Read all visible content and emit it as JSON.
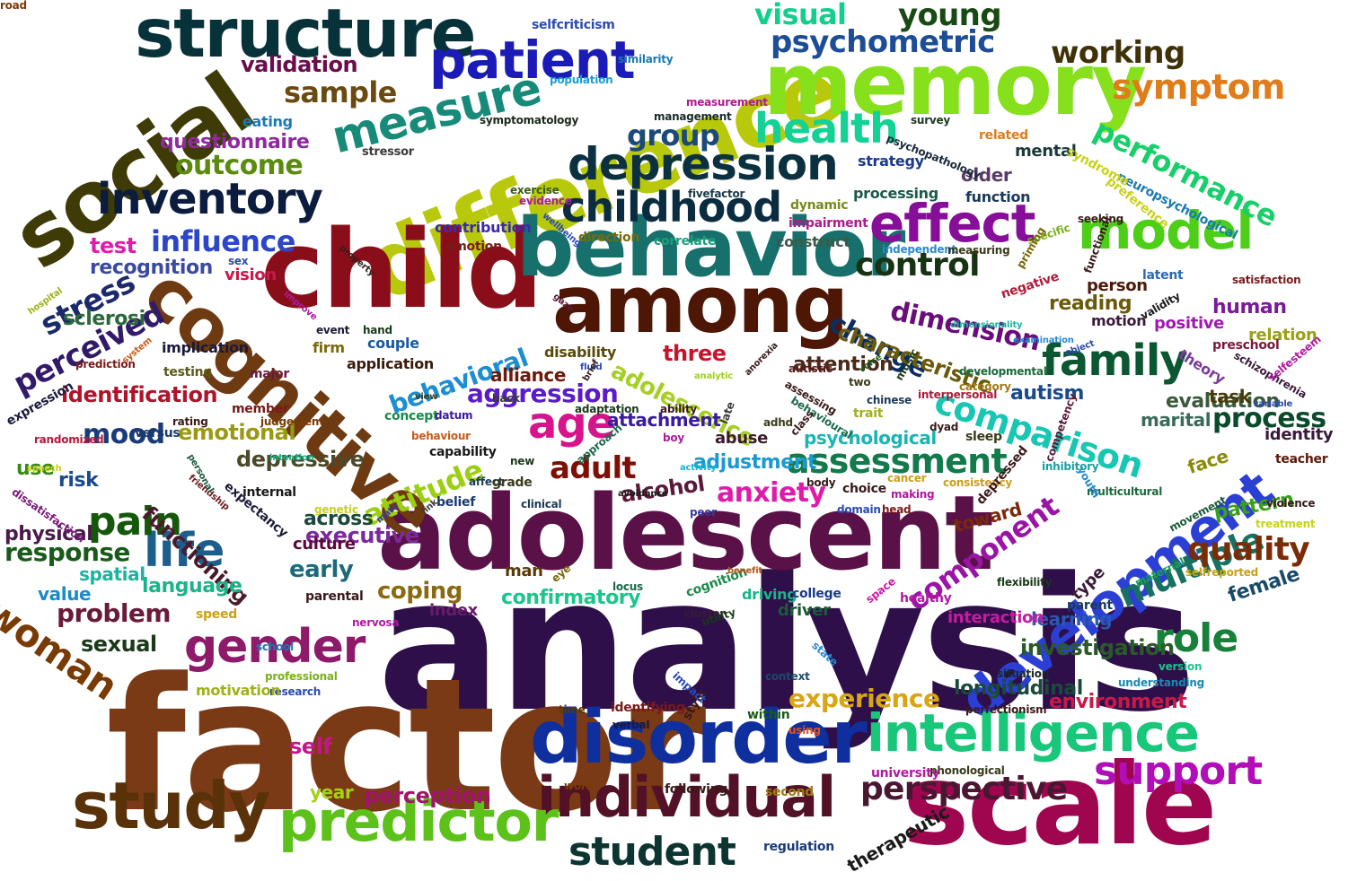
{
  "words": [
    {
      "text": "analysis",
      "color": "#2e0f4a"
    },
    {
      "text": "factor",
      "color": "#7a3a16"
    },
    {
      "text": "adolescent",
      "color": "#5a1147"
    },
    {
      "text": "scale",
      "color": "#a0064f"
    },
    {
      "text": "difference",
      "color": "#b8c90b"
    },
    {
      "text": "child",
      "color": "#8a0e1a"
    },
    {
      "text": "behavior",
      "color": "#17706b"
    },
    {
      "text": "memory",
      "color": "#86e01c"
    },
    {
      "text": "among",
      "color": "#4e1604"
    },
    {
      "text": "social",
      "color": "#3e3b06"
    },
    {
      "text": "cognitive",
      "color": "#6e3a12"
    },
    {
      "text": "disorder",
      "color": "#0f2f9e"
    },
    {
      "text": "structure",
      "color": "#07323a"
    },
    {
      "text": "study",
      "color": "#5a320a"
    },
    {
      "text": "individual",
      "color": "#521126"
    },
    {
      "text": "development",
      "color": "#2b3fd4"
    },
    {
      "text": "intelligence",
      "color": "#19c77a"
    },
    {
      "text": "predictor",
      "color": "#5cc21a"
    },
    {
      "text": "patient",
      "color": "#1b1bb7"
    },
    {
      "text": "model",
      "color": "#4ccf16"
    },
    {
      "text": "depression",
      "color": "#0b3140"
    },
    {
      "text": "inventory",
      "color": "#0b1c3f"
    },
    {
      "text": "family",
      "color": "#0b5731"
    },
    {
      "text": "measure",
      "color": "#178a79"
    },
    {
      "text": "effect",
      "color": "#860e98"
    },
    {
      "text": "childhood",
      "color": "#0a2b40"
    },
    {
      "text": "psychometric",
      "color": "#1d4d96"
    },
    {
      "text": "life",
      "color": "#1c5e8c"
    },
    {
      "text": "woman",
      "color": "#7a3a04"
    },
    {
      "text": "gender",
      "color": "#8e1a6a"
    },
    {
      "text": "age",
      "color": "#d7148c"
    },
    {
      "text": "comparison",
      "color": "#17c7b4"
    },
    {
      "text": "student",
      "color": "#0c3431"
    },
    {
      "text": "support",
      "color": "#b10eb7"
    },
    {
      "text": "health",
      "color": "#14d196"
    },
    {
      "text": "symptom",
      "color": "#e07c19"
    },
    {
      "text": "performance",
      "color": "#18cf6b"
    },
    {
      "text": "perspective",
      "color": "#4a1732"
    },
    {
      "text": "assessment",
      "color": "#127a4b"
    },
    {
      "text": "control",
      "color": "#173314"
    },
    {
      "text": "role",
      "color": "#17813a"
    },
    {
      "text": "multiple",
      "color": "#177061"
    },
    {
      "text": "pain",
      "color": "#15580c"
    },
    {
      "text": "attitude",
      "color": "#9ccf14"
    },
    {
      "text": "young",
      "color": "#194a14"
    },
    {
      "text": "working",
      "color": "#403108"
    },
    {
      "text": "visual",
      "color": "#14ce8b"
    },
    {
      "text": "quality",
      "color": "#7a2c06"
    },
    {
      "text": "anxiety",
      "color": "#de1caa"
    },
    {
      "text": "change",
      "color": "#0b2d61"
    },
    {
      "text": "outcome",
      "color": "#5a8b0e"
    },
    {
      "text": "adult",
      "color": "#7c1004"
    },
    {
      "text": "influence",
      "color": "#2b46c8"
    },
    {
      "text": "experience",
      "color": "#d7a612"
    },
    {
      "text": "perceived",
      "color": "#321a6a"
    },
    {
      "text": "group",
      "color": "#1b4a7a"
    },
    {
      "text": "behavioral",
      "color": "#1c8ed1"
    },
    {
      "text": "adolescence",
      "color": "#a6cf24"
    },
    {
      "text": "aggression",
      "color": "#5a1bc8"
    },
    {
      "text": "functioning",
      "color": "#4a1a2a"
    },
    {
      "text": "problem",
      "color": "#6a1a3a"
    },
    {
      "text": "component",
      "color": "#9a14a6"
    },
    {
      "text": "process",
      "color": "#0b4a2a"
    },
    {
      "text": "dimension",
      "color": "#6a0d7a"
    },
    {
      "text": "longitudinal",
      "color": "#1a4a3a"
    },
    {
      "text": "characteristic",
      "color": "#6a5a0b"
    },
    {
      "text": "sample",
      "color": "#6a4a10"
    },
    {
      "text": "validation",
      "color": "#6a0d4a"
    },
    {
      "text": "questionnaire",
      "color": "#8e2a9e"
    },
    {
      "text": "stress",
      "color": "#1a2a6a"
    },
    {
      "text": "identification",
      "color": "#b0142a"
    },
    {
      "text": "mood",
      "color": "#1a3a7a"
    },
    {
      "text": "emotional",
      "color": "#9a9a10"
    },
    {
      "text": "depressive",
      "color": "#4a4a2a"
    },
    {
      "text": "response",
      "color": "#1a5a1a"
    },
    {
      "text": "sexual",
      "color": "#1a3a1a"
    },
    {
      "text": "early",
      "color": "#1a6a7a"
    },
    {
      "text": "executive",
      "color": "#7a2a9a"
    },
    {
      "text": "coping",
      "color": "#8a6a10"
    },
    {
      "text": "confirmatory",
      "color": "#1ac68a"
    },
    {
      "text": "language",
      "color": "#1ab48a"
    },
    {
      "text": "spatial",
      "color": "#1ab4a0"
    },
    {
      "text": "value",
      "color": "#1a8ac8"
    },
    {
      "text": "self",
      "color": "#c8148a"
    },
    {
      "text": "perception",
      "color": "#a0146a"
    },
    {
      "text": "year",
      "color": "#a6d214"
    },
    {
      "text": "test",
      "color": "#e01cb0"
    },
    {
      "text": "recognition",
      "color": "#3a4aa0"
    },
    {
      "text": "sclerosi",
      "color": "#2a6a3a"
    },
    {
      "text": "risk",
      "color": "#1a4a8a"
    },
    {
      "text": "physical",
      "color": "#4a1a4a"
    },
    {
      "text": "use",
      "color": "#3a8a1a"
    },
    {
      "text": "three",
      "color": "#c8142a"
    },
    {
      "text": "alliance",
      "color": "#6a1a0a"
    },
    {
      "text": "attention",
      "color": "#4a2a1a"
    },
    {
      "text": "autism",
      "color": "#1a4a8a"
    },
    {
      "text": "evaluation",
      "color": "#3a5a3a"
    },
    {
      "text": "marital",
      "color": "#3a6a5a"
    },
    {
      "text": "identity",
      "color": "#3a1a3a"
    },
    {
      "text": "task",
      "color": "#4a3a0a"
    },
    {
      "text": "face",
      "color": "#8a8a0a"
    },
    {
      "text": "pattern",
      "color": "#3aa01a"
    },
    {
      "text": "reading",
      "color": "#6a5a0a"
    },
    {
      "text": "human",
      "color": "#7a1a9a"
    },
    {
      "text": "relation",
      "color": "#9aa01a"
    },
    {
      "text": "theory",
      "color": "#7a3a9a"
    },
    {
      "text": "positive",
      "color": "#a01ab0"
    },
    {
      "text": "person",
      "color": "#4a1a0a"
    },
    {
      "text": "motion",
      "color": "#3a1a3a"
    },
    {
      "text": "older",
      "color": "#5a3a6a"
    },
    {
      "text": "mental",
      "color": "#1a3a3a"
    },
    {
      "text": "processing",
      "color": "#1a5a4a"
    },
    {
      "text": "function",
      "color": "#1a3a5a"
    },
    {
      "text": "investigation",
      "color": "#2a5a2a"
    },
    {
      "text": "learning",
      "color": "#2a5ab0"
    },
    {
      "text": "interaction",
      "color": "#c81aa0"
    },
    {
      "text": "female",
      "color": "#1a4a6a"
    },
    {
      "text": "toward",
      "color": "#7a2a0a"
    },
    {
      "text": "environment",
      "color": "#c81a4a"
    },
    {
      "text": "psychological",
      "color": "#1ab4b4"
    },
    {
      "text": "attachment",
      "color": "#3a1aa0"
    },
    {
      "text": "abuse",
      "color": "#3a1a2a"
    },
    {
      "text": "alcohol",
      "color": "#5a1a3a"
    },
    {
      "text": "adjustment",
      "color": "#1a9ad2"
    },
    {
      "text": "across",
      "color": "#1a4a3a"
    },
    {
      "text": "culture",
      "color": "#5a0a3a"
    },
    {
      "text": "disability",
      "color": "#5a4a0a"
    },
    {
      "text": "application",
      "color": "#3a1a0a"
    },
    {
      "text": "couple",
      "color": "#1a5aa0"
    },
    {
      "text": "construct",
      "color": "#3a5a4a"
    },
    {
      "text": "correlate",
      "color": "#1aa07a"
    },
    {
      "text": "contribution",
      "color": "#3a2ab0"
    },
    {
      "text": "emotion",
      "color": "#7a1a1a"
    },
    {
      "text": "eating",
      "color": "#1a7ab0"
    },
    {
      "text": "strategy",
      "color": "#1a3a8a"
    },
    {
      "text": "impairment",
      "color": "#b01a8a"
    },
    {
      "text": "dynamic",
      "color": "#7a8a1a"
    },
    {
      "text": "evidence",
      "color": "#b01aa0"
    },
    {
      "text": "exercise",
      "color": "#3a5a1a"
    },
    {
      "text": "fivefactor",
      "color": "#1a3a4a"
    },
    {
      "text": "management",
      "color": "#1a2a2a"
    },
    {
      "text": "measurement",
      "color": "#b01a8a"
    },
    {
      "text": "population",
      "color": "#1aa0d2"
    },
    {
      "text": "similarity",
      "color": "#1a7ab0"
    },
    {
      "text": "selfcriticism",
      "color": "#2a4ab0"
    },
    {
      "text": "symptomatology",
      "color": "#1a2a1a"
    },
    {
      "text": "stressor",
      "color": "#3a3a3a"
    },
    {
      "text": "related",
      "color": "#e07c19"
    },
    {
      "text": "survey",
      "color": "#1a3a1a"
    },
    {
      "text": "psychopathology",
      "color": "#1a2a3a"
    },
    {
      "text": "neuropsychological",
      "color": "#1a7ab0"
    },
    {
      "text": "syndrome",
      "color": "#c8d21a"
    },
    {
      "text": "preference",
      "color": "#c8d21a"
    },
    {
      "text": "seeking",
      "color": "#3a1a1a"
    },
    {
      "text": "specific",
      "color": "#7ab01a"
    },
    {
      "text": "priming",
      "color": "#7a6a0a"
    },
    {
      "text": "independent",
      "color": "#2a8ad2"
    },
    {
      "text": "measuring",
      "color": "#3a3a1a"
    },
    {
      "text": "negative",
      "color": "#b01a3a"
    },
    {
      "text": "functional",
      "color": "#3a1a1a"
    },
    {
      "text": "latent",
      "color": "#2a6ab0"
    },
    {
      "text": "satisfaction",
      "color": "#7a1a1a"
    },
    {
      "text": "validity",
      "color": "#1a1a1a"
    },
    {
      "text": "preschool",
      "color": "#7a1a3a"
    },
    {
      "text": "schizophrenia",
      "color": "#3a1a3a"
    },
    {
      "text": "selfesteem",
      "color": "#b01aa0"
    },
    {
      "text": "variable",
      "color": "#2a4ab0"
    },
    {
      "text": "teacher",
      "color": "#5a1a0a"
    },
    {
      "text": "violence",
      "color": "#3a1a1a"
    },
    {
      "text": "treatment",
      "color": "#c8d21a"
    },
    {
      "text": "selfreported",
      "color": "#c8a01a"
    },
    {
      "text": "version",
      "color": "#1ac68a"
    },
    {
      "text": "understanding",
      "color": "#1a8ab0"
    },
    {
      "text": "situation",
      "color": "#1a2a2a"
    },
    {
      "text": "perfectionism",
      "color": "#3a1a1a"
    },
    {
      "text": "phonological",
      "color": "#3a3a1a"
    },
    {
      "text": "university",
      "color": "#b01aa0"
    },
    {
      "text": "second",
      "color": "#a07a1a"
    },
    {
      "text": "regulation",
      "color": "#1a3a7a"
    },
    {
      "text": "therapeutic",
      "color": "#1a1a1a"
    },
    {
      "text": "using",
      "color": "#e0541a"
    },
    {
      "text": "within",
      "color": "#1a5a1a"
    },
    {
      "text": "style",
      "color": "#3a1a1a"
    },
    {
      "text": "time",
      "color": "#5a3a0a"
    },
    {
      "text": "verbal",
      "color": "#1a1a3a"
    },
    {
      "text": "identifying",
      "color": "#7a1a1a"
    },
    {
      "text": "following",
      "color": "#3a1a1a"
    },
    {
      "text": "work",
      "color": "#7a3a0a"
    },
    {
      "text": "research",
      "color": "#2a4ab0"
    },
    {
      "text": "professional",
      "color": "#7ab01a"
    },
    {
      "text": "motivation",
      "color": "#a0b01a"
    },
    {
      "text": "school",
      "color": "#1a7ab0"
    },
    {
      "text": "nervosa",
      "color": "#b01aa0"
    },
    {
      "text": "speed",
      "color": "#c8a01a"
    },
    {
      "text": "parental",
      "color": "#3a1a1a"
    },
    {
      "text": "index",
      "color": "#6a1a6a"
    },
    {
      "text": "man",
      "color": "#5a3a0a"
    },
    {
      "text": "eye",
      "color": "#7a6a0a"
    },
    {
      "text": "locus",
      "color": "#1a6a4a"
    },
    {
      "text": "cognition",
      "color": "#1a8a4a"
    },
    {
      "text": "cluster",
      "color": "#3a1a3a"
    },
    {
      "text": "utility",
      "color": "#1a3a1a"
    },
    {
      "text": "driving",
      "color": "#1ab48a"
    },
    {
      "text": "college",
      "color": "#1a3a8a"
    },
    {
      "text": "driver",
      "color": "#1a5a3a"
    },
    {
      "text": "context",
      "color": "#1a4a6a"
    },
    {
      "text": "impact",
      "color": "#2a4ab0"
    },
    {
      "text": "state",
      "color": "#2a8ad2"
    },
    {
      "text": "space",
      "color": "#c81aa0"
    },
    {
      "text": "healthy",
      "color": "#b01aa0"
    },
    {
      "text": "head",
      "color": "#7a1a1a"
    },
    {
      "text": "making",
      "color": "#b01aa0"
    },
    {
      "text": "domain",
      "color": "#2a4ab0"
    },
    {
      "text": "choice",
      "color": "#3a1a1a"
    },
    {
      "text": "body",
      "color": "#3a1a1a"
    },
    {
      "text": "cancer",
      "color": "#c8a01a"
    },
    {
      "text": "consistency",
      "color": "#c8a01a"
    },
    {
      "text": "depressed",
      "color": "#3a1a1a"
    },
    {
      "text": "competency",
      "color": "#5a1a3a"
    },
    {
      "text": "flexibility",
      "color": "#1a3a1a"
    },
    {
      "text": "parent",
      "color": "#1a3a5a"
    },
    {
      "text": "type",
      "color": "#3a1a3a"
    },
    {
      "text": "maternal",
      "color": "#1aa05a"
    },
    {
      "text": "movement",
      "color": "#1a5a3a"
    },
    {
      "text": "multicultural",
      "color": "#1a6a3a"
    },
    {
      "text": "youth",
      "color": "#2a8ad2"
    },
    {
      "text": "inhibitory",
      "color": "#1aa0a0"
    },
    {
      "text": "sleep",
      "color": "#3a3a1a"
    },
    {
      "text": "dyad",
      "color": "#3a1a1a"
    },
    {
      "text": "trait",
      "color": "#a0b01a"
    },
    {
      "text": "category",
      "color": "#a07a1a"
    },
    {
      "text": "developmental",
      "color": "#1a6a3a"
    },
    {
      "text": "dimensionality",
      "color": "#1ab4a0"
    },
    {
      "text": "examination",
      "color": "#2a8ad2"
    },
    {
      "text": "object",
      "color": "#2a4ab0"
    },
    {
      "text": "interpersonal",
      "color": "#b01a3a"
    },
    {
      "text": "music",
      "color": "#1a3a1a"
    },
    {
      "text": "two",
      "color": "#3a3a1a"
    },
    {
      "text": "chinese",
      "color": "#1a3a5a"
    },
    {
      "text": "voice",
      "color": "#1a5a1a"
    },
    {
      "text": "behavioural",
      "color": "#1a6a4a"
    },
    {
      "text": "autistic",
      "color": "#5a1a1a"
    },
    {
      "text": "assessing",
      "color": "#3a1a1a"
    },
    {
      "text": "anorexia",
      "color": "#3a1a1a"
    },
    {
      "text": "analytic",
      "color": "#a0d21a"
    },
    {
      "text": "late",
      "color": "#3a3a3a"
    },
    {
      "text": "adhd",
      "color": "#3a3a1a"
    },
    {
      "text": "class",
      "color": "#3a1a1a"
    },
    {
      "text": "boy",
      "color": "#b01aa0"
    },
    {
      "text": "ability",
      "color": "#3a1a1a"
    },
    {
      "text": "adaptation",
      "color": "#1a3a1a"
    },
    {
      "text": "back",
      "color": "#3a3a3a"
    },
    {
      "text": "fluid",
      "color": "#2a4ab0"
    },
    {
      "text": "brief",
      "color": "#3a1a1a"
    },
    {
      "text": "view",
      "color": "#3a3a1a"
    },
    {
      "text": "concept",
      "color": "#1a8a4a"
    },
    {
      "text": "datum",
      "color": "#3a1aa0"
    },
    {
      "text": "behaviour",
      "color": "#c85a1a"
    },
    {
      "text": "capability",
      "color": "#1a1a1a"
    },
    {
      "text": "new",
      "color": "#1a3a1a"
    },
    {
      "text": "approach",
      "color": "#1a6a4a"
    },
    {
      "text": "activity",
      "color": "#1ab4d2"
    },
    {
      "text": "affect",
      "color": "#1a3a5a"
    },
    {
      "text": "grade",
      "color": "#3a3a1a"
    },
    {
      "text": "belief",
      "color": "#1a3a6a"
    },
    {
      "text": "clinical",
      "color": "#1a3a5a"
    },
    {
      "text": "avoidance",
      "color": "#1a1a1a"
    },
    {
      "text": "peer",
      "color": "#3a3aa0"
    },
    {
      "text": "benefit",
      "color": "#b0541a"
    },
    {
      "text": "link",
      "color": "#3a3a3a"
    },
    {
      "text": "mate",
      "color": "#3a3aa0"
    },
    {
      "text": "genetic",
      "color": "#c8d21a"
    },
    {
      "text": "internal",
      "color": "#1a1a1a"
    },
    {
      "text": "expectancy",
      "color": "#1a1a3a"
    },
    {
      "text": "friendship",
      "color": "#6a1a1a"
    },
    {
      "text": "personal",
      "color": "#1a5a3a"
    },
    {
      "text": "intention",
      "color": "#1ab48a"
    },
    {
      "text": "dissatisfaction",
      "color": "#7a1a7a"
    },
    {
      "text": "speech",
      "color": "#c8d21a"
    },
    {
      "text": "randomized",
      "color": "#b01a3a"
    },
    {
      "text": "versus",
      "color": "#1a3a6a"
    },
    {
      "text": "rating",
      "color": "#3a1a1a"
    },
    {
      "text": "judgement",
      "color": "#7a3a0a"
    },
    {
      "text": "member",
      "color": "#7a1a1a"
    },
    {
      "text": "expression",
      "color": "#1a1a3a"
    },
    {
      "text": "system",
      "color": "#c85a1a"
    },
    {
      "text": "prediction",
      "color": "#7a1a1a"
    },
    {
      "text": "testing",
      "color": "#5a5a1a"
    },
    {
      "text": "implication",
      "color": "#1a1a3a"
    },
    {
      "text": "major",
      "color": "#6a1a3a"
    },
    {
      "text": "firm",
      "color": "#7a6a0a"
    },
    {
      "text": "event",
      "color": "#1a1a3a"
    },
    {
      "text": "hand",
      "color": "#1a3a1a"
    },
    {
      "text": "improve",
      "color": "#b01aa0"
    },
    {
      "text": "vision",
      "color": "#c81a4a"
    },
    {
      "text": "sex",
      "color": "#2a4ab0"
    },
    {
      "text": "property",
      "color": "#3a1a1a"
    },
    {
      "text": "hospital",
      "color": "#a0b01a"
    },
    {
      "text": "wellbeing",
      "color": "#2a4ab0"
    },
    {
      "text": "direction",
      "color": "#7a6a0a"
    },
    {
      "text": "gaze",
      "color": "#5a1a3a"
    },
    {
      "text": "road",
      "color": "#7a3a0a"
    }
  ]
}
